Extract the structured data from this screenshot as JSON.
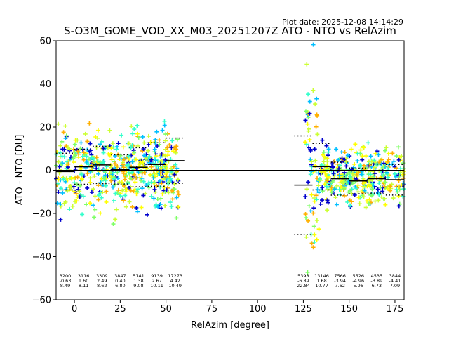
{
  "chart_data": {
    "type": "scatter",
    "title": "S-O3M_GOME_VOD_XX_M03_20251207Z ATO - NTO vs RelAzim",
    "plot_date": "Plot date: 2025-12-08 14:14:29",
    "xlabel": "RelAzim [degree]",
    "ylabel": "ATO - NTO [DU]",
    "xlim": [
      -10,
      180
    ],
    "ylim": [
      -60,
      60
    ],
    "xticks": [
      0,
      25,
      50,
      75,
      100,
      125,
      150,
      175
    ],
    "yticks": [
      -60,
      -40,
      -20,
      0,
      20,
      40,
      60
    ],
    "zero_line": 0,
    "marker": "+",
    "colormap": [
      "#0000cd",
      "#00bfff",
      "#33ffcc",
      "#7fff66",
      "#ccff33",
      "#ffff00",
      "#ffb000"
    ],
    "point_clusters": [
      {
        "x_range": [
          -10,
          57
        ],
        "y_center": 0,
        "y_spread": 18
      },
      {
        "x_range": [
          126,
          134
        ],
        "y_center": 0,
        "y_spread": 45
      },
      {
        "x_range": [
          134,
          180
        ],
        "y_center": -3,
        "y_spread": 14
      }
    ],
    "bins": [
      {
        "x_range": [
          -10,
          0
        ],
        "count": "3200",
        "mean": -0.63,
        "std": 8.49,
        "mean_label": "-0.63",
        "std_label": "8.49"
      },
      {
        "x_range": [
          0,
          10
        ],
        "count": "3116",
        "mean": 1.6,
        "std": 8.11,
        "mean_label": "1.60",
        "std_label": "8.11"
      },
      {
        "x_range": [
          10,
          20
        ],
        "count": "3309",
        "mean": 2.49,
        "std": 8.62,
        "mean_label": "2.49",
        "std_label": "8.62"
      },
      {
        "x_range": [
          20,
          30
        ],
        "count": "3847",
        "mean": 0.4,
        "std": 6.8,
        "mean_label": "0.40",
        "std_label": "6.80"
      },
      {
        "x_range": [
          30,
          40
        ],
        "count": "5141",
        "mean": 1.38,
        "std": 9.08,
        "mean_label": "1.38",
        "std_label": "9.08"
      },
      {
        "x_range": [
          40,
          50
        ],
        "count": "9139",
        "mean": 2.67,
        "std": 10.11,
        "mean_label": "2.67",
        "std_label": "10.11"
      },
      {
        "x_range": [
          50,
          60
        ],
        "count": "17273",
        "mean": 4.42,
        "std": 10.49,
        "mean_label": "4.42",
        "std_label": "10.49"
      },
      {
        "x_range": [
          120,
          130
        ],
        "count": "5398",
        "mean": -6.89,
        "std": 22.84,
        "mean_label": "-6.89",
        "std_label": "22.84"
      },
      {
        "x_range": [
          130,
          140
        ],
        "count": "13146",
        "mean": 1.68,
        "std": 10.77,
        "mean_label": "1.68",
        "std_label": "10.77"
      },
      {
        "x_range": [
          140,
          150
        ],
        "count": "7566",
        "mean": -3.94,
        "std": 7.62,
        "mean_label": "-3.94",
        "std_label": "7.62"
      },
      {
        "x_range": [
          150,
          160
        ],
        "count": "5526",
        "mean": -4.96,
        "std": 5.96,
        "mean_label": "-4.96",
        "std_label": "5.96"
      },
      {
        "x_range": [
          160,
          170
        ],
        "count": "4535",
        "mean": -3.89,
        "std": 6.73,
        "mean_label": "-3.89",
        "std_label": "6.73"
      },
      {
        "x_range": [
          170,
          180
        ],
        "count": "3844",
        "mean": -4.41,
        "std": 7.09,
        "mean_label": "-4.41",
        "std_label": "7.09"
      }
    ]
  }
}
